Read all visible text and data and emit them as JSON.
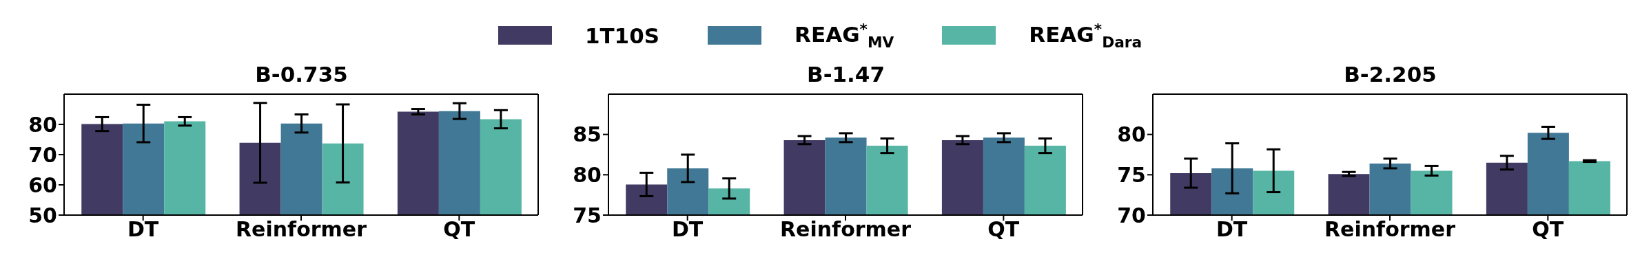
{
  "chart_data": [
    {
      "type": "bar",
      "title": "B-0.735",
      "categories": [
        "DT",
        "Reinformer",
        "QT"
      ],
      "ylim": [
        50,
        90
      ],
      "yticks": [
        50,
        60,
        70,
        80
      ],
      "legend": "top",
      "series": [
        {
          "name": "1T10S",
          "color": "#413a63",
          "values": [
            80.1,
            73.9,
            84.2
          ],
          "errors": [
            2.3,
            13.2,
            0.9
          ]
        },
        {
          "name": "REAG$^{*}$$_{MV}$",
          "color": "#417896",
          "values": [
            80.3,
            80.3,
            84.4
          ],
          "errors": [
            6.2,
            3.0,
            2.6
          ]
        },
        {
          "name": "REAG$^{*}$$_{Dara}$",
          "color": "#56b5a4",
          "values": [
            81.0,
            73.7,
            81.7
          ],
          "errors": [
            1.4,
            12.9,
            3.0
          ]
        }
      ]
    },
    {
      "type": "bar",
      "title": "B-1.47",
      "categories": [
        "DT",
        "Reinformer",
        "QT"
      ],
      "ylim": [
        75,
        90
      ],
      "yticks": [
        75,
        80,
        85
      ],
      "series": [
        {
          "color": "#413a63",
          "values": [
            78.8,
            84.3,
            84.3
          ],
          "errors": [
            1.45,
            0.5,
            0.5
          ]
        },
        {
          "color": "#417896",
          "values": [
            80.8,
            84.6,
            84.6
          ],
          "errors": [
            1.7,
            0.55,
            0.55
          ]
        },
        {
          "color": "#56b5a4",
          "values": [
            78.3,
            83.6,
            83.6
          ],
          "errors": [
            1.25,
            0.9,
            0.9
          ]
        }
      ]
    },
    {
      "type": "bar",
      "title": "B-2.205",
      "categories": [
        "DT",
        "Reinformer",
        "QT"
      ],
      "ylim": [
        70,
        85
      ],
      "yticks": [
        70,
        75,
        80
      ],
      "series": [
        {
          "color": "#413a63",
          "values": [
            75.2,
            75.1,
            76.5
          ],
          "errors": [
            1.8,
            0.25,
            0.85
          ]
        },
        {
          "color": "#417896",
          "values": [
            75.8,
            76.4,
            80.2
          ],
          "errors": [
            3.1,
            0.6,
            0.75
          ]
        },
        {
          "color": "#56b5a4",
          "values": [
            75.5,
            75.5,
            76.7
          ],
          "errors": [
            2.65,
            0.6,
            0.1
          ]
        }
      ]
    }
  ]
}
